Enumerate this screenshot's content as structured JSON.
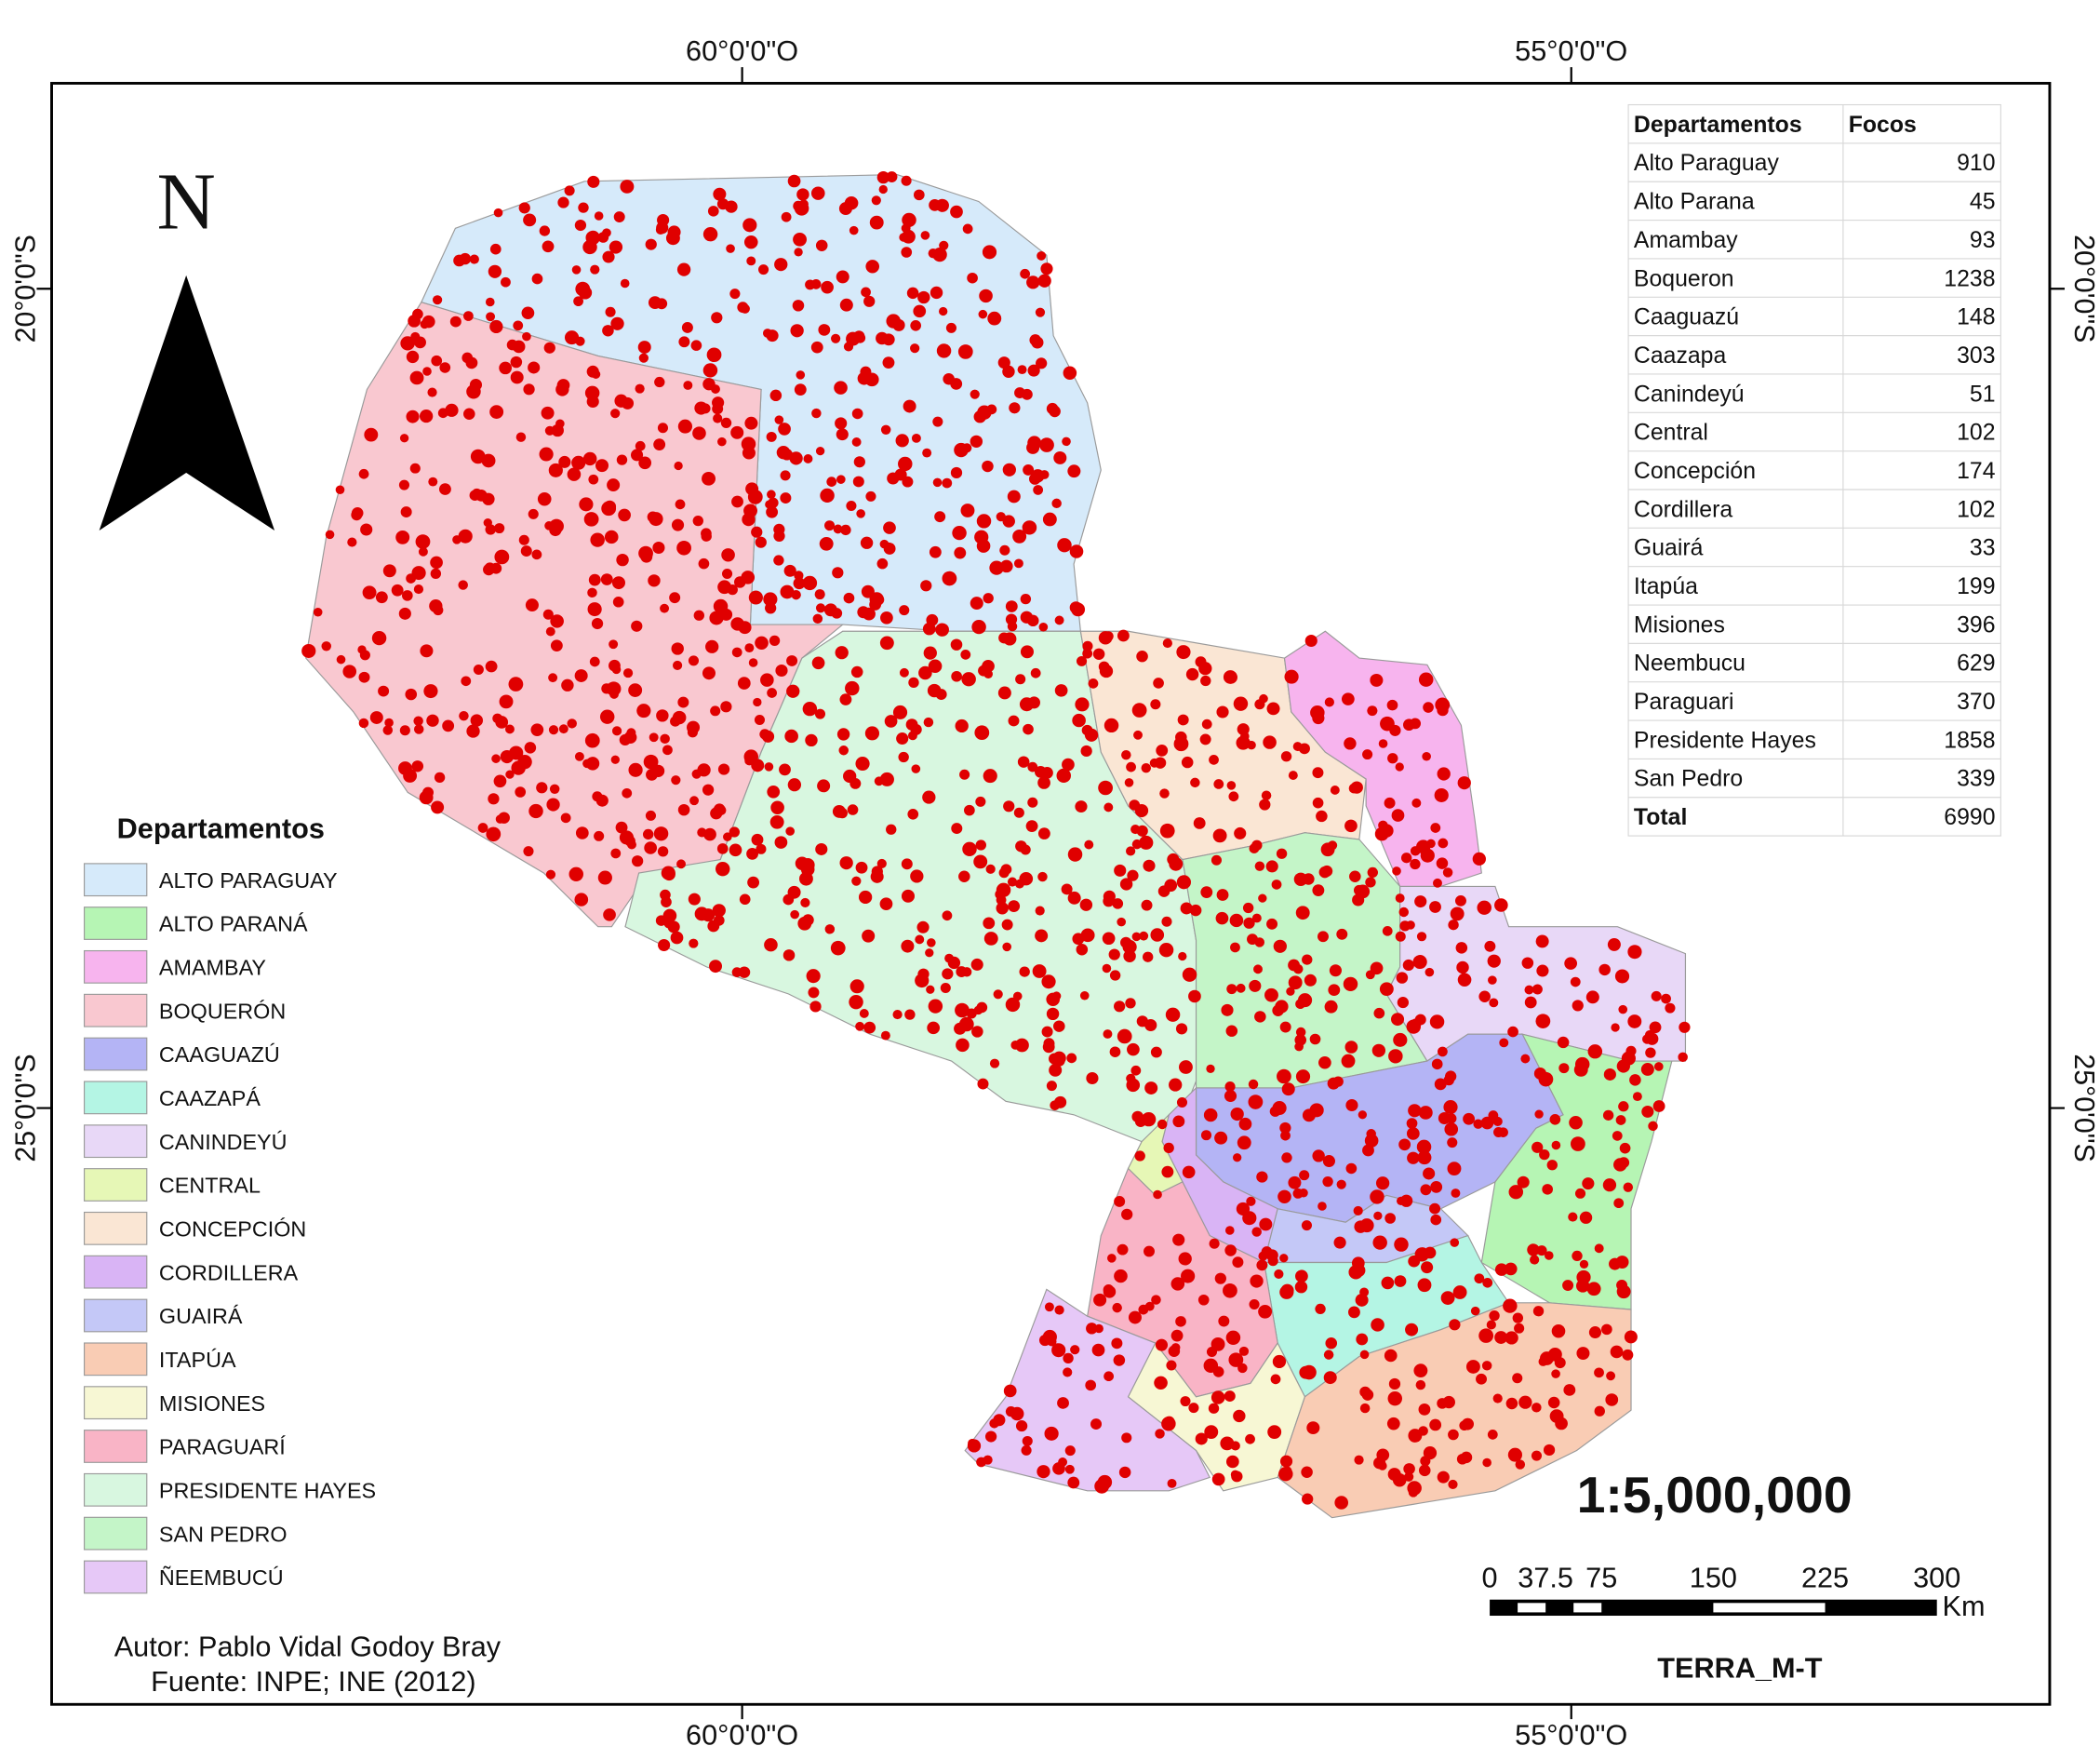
{
  "coordinates": {
    "top": [
      "60°0'0\"O",
      "55°0'0\"O"
    ],
    "bottom": [
      "60°0'0\"O",
      "55°0'0\"O"
    ],
    "left": [
      "20°0'0\"S",
      "25°0'0\"S"
    ],
    "right": [
      "20°0'0\"S",
      "25°0'0\"S"
    ]
  },
  "north": "N",
  "table": {
    "header": [
      "Departamentos",
      "Focos"
    ],
    "rows": [
      [
        "Alto Paraguay",
        910
      ],
      [
        "Alto Parana",
        45
      ],
      [
        "Amambay",
        93
      ],
      [
        "Boqueron",
        1238
      ],
      [
        "Caaguazú",
        148
      ],
      [
        "Caazapa",
        303
      ],
      [
        "Canindeyú",
        51
      ],
      [
        "Central",
        102
      ],
      [
        "Concepción",
        174
      ],
      [
        "Cordillera",
        102
      ],
      [
        "Guairá",
        33
      ],
      [
        "Itapúa",
        199
      ],
      [
        "Misiones",
        396
      ],
      [
        "Neembucu",
        629
      ],
      [
        "Paraguari",
        370
      ],
      [
        "Presidente Hayes",
        1858
      ],
      [
        "San Pedro",
        339
      ]
    ],
    "total": [
      "Total",
      6990
    ]
  },
  "legend": {
    "title": "Departamentos",
    "items": [
      {
        "label": "ALTO PARAGUAY",
        "color": "#d6eafa"
      },
      {
        "label": "ALTO PARANÁ",
        "color": "#b6f5b4"
      },
      {
        "label": "AMAMBAY",
        "color": "#f7b4ee"
      },
      {
        "label": "BOQUERÓN",
        "color": "#f9c8d0"
      },
      {
        "label": "CAAGUAZÚ",
        "color": "#b4b4f5"
      },
      {
        "label": "CAAZAPÁ",
        "color": "#b4f5e4"
      },
      {
        "label": "CANINDEYÚ",
        "color": "#e8d8f7"
      },
      {
        "label": "CENTRAL",
        "color": "#e6f7b6"
      },
      {
        "label": "CONCEPCIÓN",
        "color": "#fae6d4"
      },
      {
        "label": "CORDILLERA",
        "color": "#d9b4f5"
      },
      {
        "label": "GUAIRÁ",
        "color": "#c4c8f7"
      },
      {
        "label": "ITAPÚA",
        "color": "#f9ccb4"
      },
      {
        "label": "MISIONES",
        "color": "#f7f7d4"
      },
      {
        "label": "PARAGUARÍ",
        "color": "#f9b4c6"
      },
      {
        "label": "PRESIDENTE HAYES",
        "color": "#d8f7e0"
      },
      {
        "label": "SAN PEDRO",
        "color": "#c4f5c8"
      },
      {
        "label": "ÑEEMBUCÚ",
        "color": "#e6c8f7"
      }
    ]
  },
  "scale": "1:5,000,000",
  "scale_bar": {
    "ticks": [
      0,
      37.5,
      75,
      150,
      225,
      300
    ],
    "unit": "Km"
  },
  "satellite": "TERRA_M-T",
  "author": "Autor: Pablo Vidal Godoy Bray",
  "source": "Fuente: INPE; INE (2012)"
}
